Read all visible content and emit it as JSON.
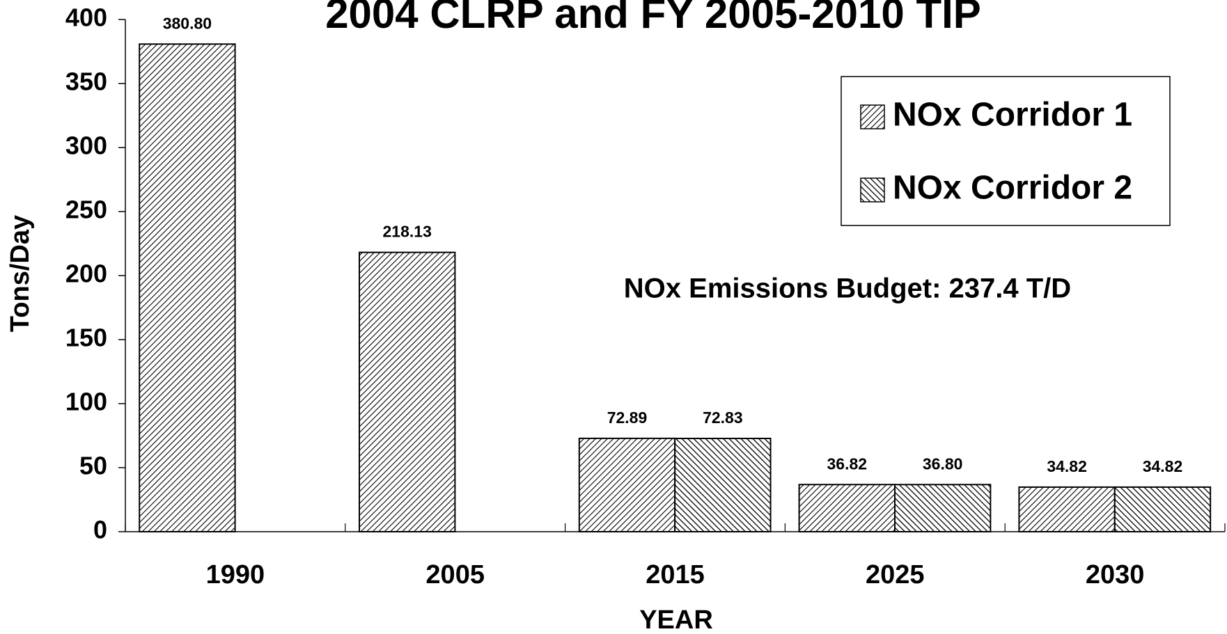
{
  "chart_data": {
    "type": "bar",
    "title": "2004 CLRP and FY 2005-2010 TIP",
    "annotation": "NOx Emissions Budget: 237.4 T/D",
    "x_label": "YEAR",
    "y_label": "Tons/Day",
    "categories": [
      "1990",
      "2005",
      "2015",
      "2025",
      "2030"
    ],
    "series": [
      {
        "name": "NOx Corridor 1",
        "color": "#000000",
        "hatch": "/",
        "values": [
          380.8,
          218.13,
          72.89,
          36.82,
          34.82
        ],
        "value_labels": [
          "380.80",
          "218.13",
          "72.89",
          "36.82",
          "34.82"
        ]
      },
      {
        "name": "NOx Corridor 2",
        "color": "#000000",
        "hatch": "\\",
        "values": [
          null,
          null,
          72.83,
          36.8,
          34.82
        ],
        "value_labels": [
          null,
          null,
          "72.83",
          "36.80",
          "34.82"
        ]
      }
    ],
    "ylim": [
      0,
      400
    ],
    "yticks": [
      0,
      50,
      100,
      150,
      200,
      250,
      300,
      350,
      400
    ],
    "legend": "upper right"
  }
}
